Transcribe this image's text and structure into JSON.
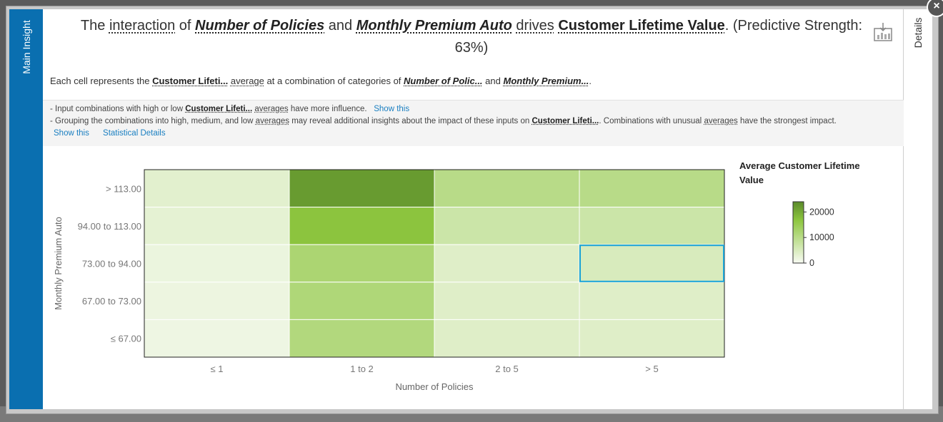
{
  "tabs": {
    "main_insight": "Main Insight",
    "details": "Details"
  },
  "headline": {
    "w1": "The",
    "w2": "interaction",
    "w3": "of",
    "w4": "Number of Policies",
    "w5": "and",
    "w6": "Monthly Premium Auto",
    "w7": "drives",
    "w8": "Customer Lifetime Value",
    "w9": ". (Predictive Strength: 63%)"
  },
  "subline": {
    "s1": "Each cell represents the",
    "s2": "Customer Lifeti...",
    "s3": "average",
    "s4": "at a combination of categories of",
    "s5": "Number of Polic...",
    "s6": "and",
    "s7": "Monthly Premium...",
    "s8": "."
  },
  "notes": {
    "n1a": "- Input combinations with high or low",
    "n1b": "Customer Lifeti...",
    "n1c": "averages",
    "n1d": "have more influence.",
    "n1link": "Show this",
    "n2a": "- Grouping the combinations into high, medium, and low",
    "n2b": "averages",
    "n2c": "may reveal additional insights about the impact of these inputs on",
    "n2d": "Customer Lifeti...",
    "n2e": ". Combinations with unusual",
    "n2f": "averages",
    "n2g": "have the strongest impact.",
    "link_show": "Show this",
    "link_stats": "Statistical Details"
  },
  "legend": {
    "title": "Average Customer Lifetime Value"
  },
  "colors": {
    "accent": "#0a6fb0",
    "selected_cell": "#1aa3d6",
    "link": "#1a7fc1"
  },
  "chart_data": {
    "type": "heatmap",
    "title": "",
    "xlabel": "Number of Policies",
    "ylabel": "Monthly Premium Auto",
    "x_categories": [
      "≤ 1",
      "1 to 2",
      "2 to 5",
      "> 5"
    ],
    "y_categories": [
      "> 113.00",
      "94.00 to 113.00",
      "73.00 to 94.00",
      "67.00 to 73.00",
      "≤ 67.00"
    ],
    "values": [
      [
        3500,
        22000,
        10000,
        10000
      ],
      [
        3000,
        17000,
        7000,
        7000
      ],
      [
        2000,
        12000,
        4000,
        5000
      ],
      [
        1800,
        11500,
        4000,
        4000
      ],
      [
        1500,
        11000,
        4000,
        4000
      ]
    ],
    "color_scale": {
      "min": 0,
      "max": 24000,
      "low_color": "#f8fbf3",
      "mid_color": "#8dc63f",
      "high_color": "#5a8a2a"
    },
    "legend_ticks": [
      20000,
      10000,
      0
    ],
    "highlighted_cell": {
      "row": 2,
      "col": 3
    }
  }
}
